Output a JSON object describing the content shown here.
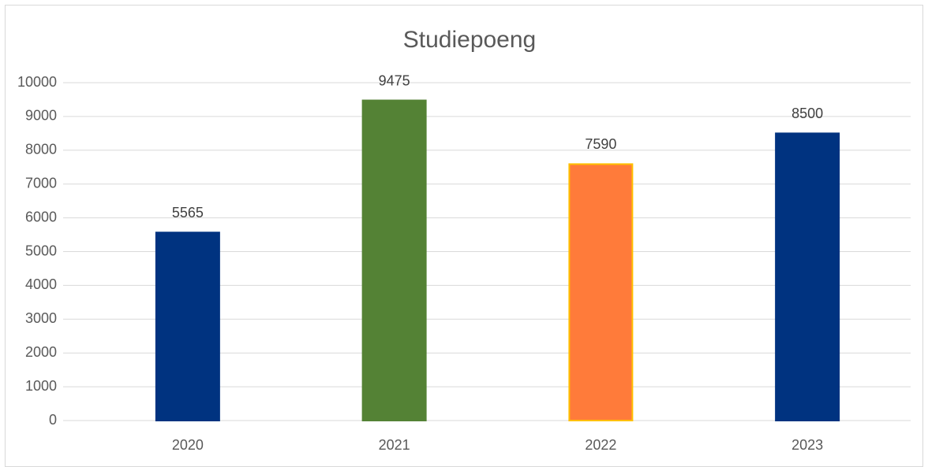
{
  "chart_data": {
    "type": "bar",
    "title": "Studiepoeng",
    "categories": [
      "2020",
      "2021",
      "2022",
      "2023"
    ],
    "values": [
      5565,
      9475,
      7590,
      8500
    ],
    "colors": [
      "#003380",
      "#548235",
      "#ff7b3a",
      "#003380"
    ],
    "edge_colors": [
      "#003380",
      "#548235",
      "#ffc000",
      "#003380"
    ],
    "ylim": [
      0,
      10000
    ],
    "yticks": [
      0,
      1000,
      2000,
      3000,
      4000,
      5000,
      6000,
      7000,
      8000,
      9000,
      10000
    ],
    "grid": true,
    "data_labels": true
  }
}
